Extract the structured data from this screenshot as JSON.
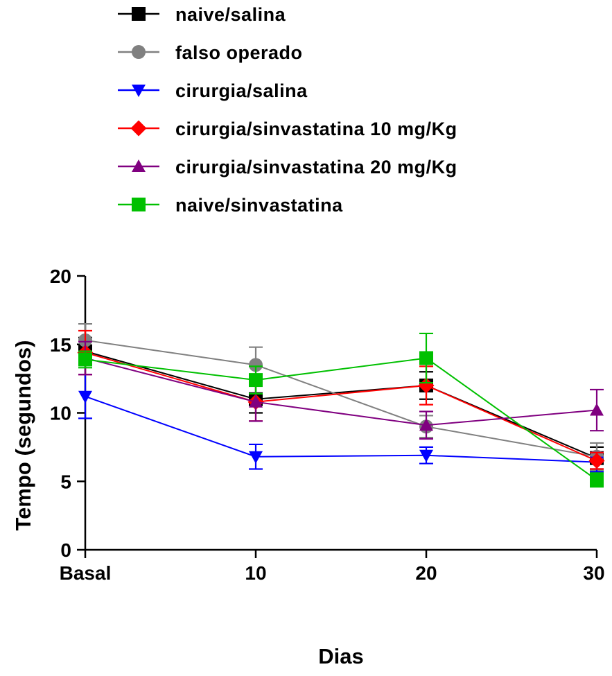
{
  "chart_data": {
    "type": "line",
    "title": "",
    "xlabel": "Dias",
    "ylabel": "Tempo (segundos)",
    "categories": [
      "Basal",
      "10",
      "20",
      "30"
    ],
    "ylim": [
      0,
      20
    ],
    "yticks": [
      0,
      5,
      10,
      15,
      20
    ],
    "yticks_labels": [
      "0",
      "5",
      "10",
      "15",
      "20"
    ],
    "grid": false,
    "legend_position": "top",
    "series": [
      {
        "name": "naive/salina",
        "color": "#000000",
        "marker": "square",
        "values": [
          14.5,
          11.0,
          12.0,
          6.7
        ],
        "errors": [
          1.0,
          1.0,
          1.0,
          0.8
        ]
      },
      {
        "name": "falso operado",
        "color": "#808080",
        "marker": "circle",
        "values": [
          15.3,
          13.5,
          9.0,
          6.8
        ],
        "errors": [
          1.2,
          1.3,
          0.8,
          1.0
        ]
      },
      {
        "name": "cirurgia/salina",
        "color": "#0000ff",
        "marker": "triangle-down",
        "values": [
          11.2,
          6.8,
          6.9,
          6.4
        ],
        "errors": [
          1.6,
          0.9,
          0.6,
          0.7
        ]
      },
      {
        "name": "cirurgia/sinvastatina 10 mg/Kg",
        "color": "#ff0000",
        "marker": "diamond",
        "values": [
          14.4,
          10.8,
          12.0,
          6.5
        ],
        "errors": [
          1.6,
          1.4,
          1.4,
          0.6
        ]
      },
      {
        "name": "cirurgia/sinvastatina 20 mg/Kg",
        "color": "#800080",
        "marker": "triangle-up",
        "values": [
          14.0,
          10.8,
          9.1,
          10.2
        ],
        "errors": [
          1.2,
          1.4,
          1.0,
          1.5
        ]
      },
      {
        "name": "naive/sinvastatina",
        "color": "#00c000",
        "marker": "square",
        "values": [
          13.9,
          12.4,
          14.0,
          5.1
        ],
        "errors": [
          0.6,
          1.0,
          1.8,
          0.5
        ]
      }
    ]
  }
}
